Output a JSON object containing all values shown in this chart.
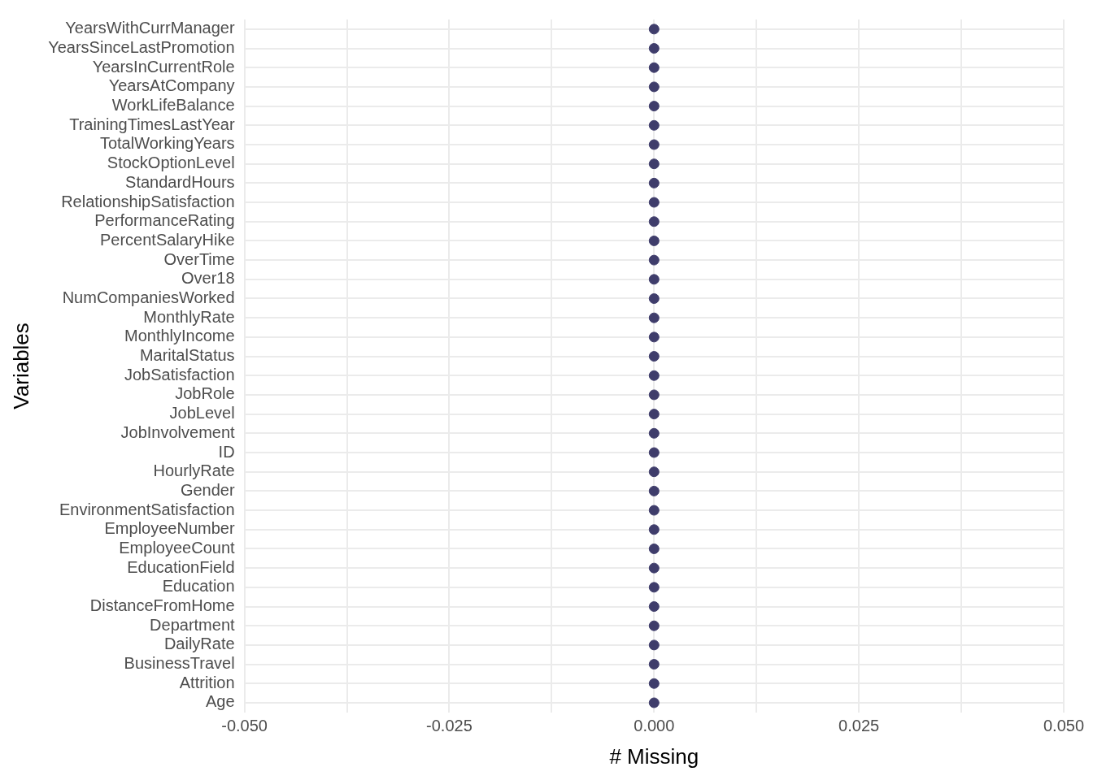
{
  "chart_data": {
    "type": "lollipop",
    "orientation": "horizontal",
    "xlabel": "# Missing",
    "ylabel": "Variables",
    "categories": [
      "YearsWithCurrManager",
      "YearsSinceLastPromotion",
      "YearsInCurrentRole",
      "YearsAtCompany",
      "WorkLifeBalance",
      "TrainingTimesLastYear",
      "TotalWorkingYears",
      "StockOptionLevel",
      "StandardHours",
      "RelationshipSatisfaction",
      "PerformanceRating",
      "PercentSalaryHike",
      "OverTime",
      "Over18",
      "NumCompaniesWorked",
      "MonthlyRate",
      "MonthlyIncome",
      "MaritalStatus",
      "JobSatisfaction",
      "JobRole",
      "JobLevel",
      "JobInvolvement",
      "ID",
      "HourlyRate",
      "Gender",
      "EnvironmentSatisfaction",
      "EmployeeNumber",
      "EmployeeCount",
      "EducationField",
      "Education",
      "DistanceFromHome",
      "Department",
      "DailyRate",
      "BusinessTravel",
      "Attrition",
      "Age"
    ],
    "values": [
      0,
      0,
      0,
      0,
      0,
      0,
      0,
      0,
      0,
      0,
      0,
      0,
      0,
      0,
      0,
      0,
      0,
      0,
      0,
      0,
      0,
      0,
      0,
      0,
      0,
      0,
      0,
      0,
      0,
      0,
      0,
      0,
      0,
      0,
      0,
      0
    ],
    "color": "#3f3d6b",
    "marker": "circle",
    "xlim": [
      -0.05,
      0.05
    ],
    "xticks": [
      {
        "value": -0.05,
        "label": "-0.050"
      },
      {
        "value": -0.0375,
        "label": null
      },
      {
        "value": -0.025,
        "label": "-0.025"
      },
      {
        "value": -0.0125,
        "label": null
      },
      {
        "value": 0,
        "label": "0.000"
      },
      {
        "value": 0.0125,
        "label": null
      },
      {
        "value": 0.025,
        "label": "0.025"
      },
      {
        "value": 0.0375,
        "label": null
      },
      {
        "value": 0.05,
        "label": "0.050"
      }
    ],
    "grid": true
  }
}
